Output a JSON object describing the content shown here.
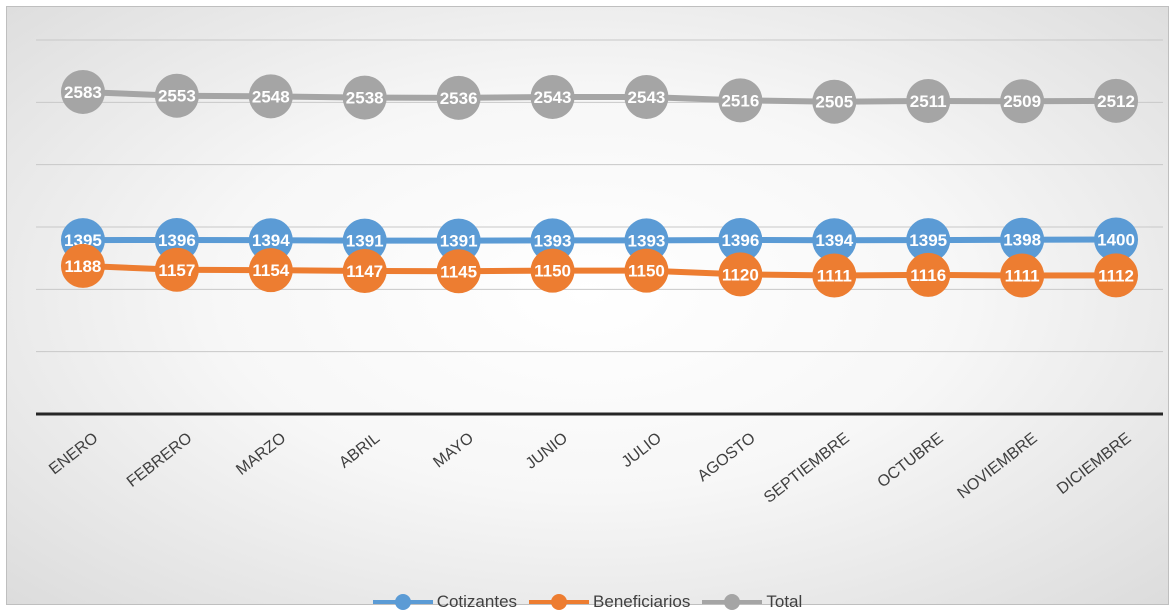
{
  "chart_data": {
    "type": "line",
    "categories": [
      "ENERO",
      "FEBRERO",
      "MARZO",
      "ABRIL",
      "MAYO",
      "JUNIO",
      "JULIO",
      "AGOSTO",
      "SEPTIEMBRE",
      "OCTUBRE",
      "NOVIEMBRE",
      "DICIEMBRE"
    ],
    "series": [
      {
        "name": "Cotizantes",
        "color": "#5b9bd5",
        "values": [
          1395,
          1396,
          1394,
          1391,
          1391,
          1393,
          1393,
          1396,
          1394,
          1395,
          1398,
          1400
        ]
      },
      {
        "name": "Beneficiarios",
        "color": "#ed7d31",
        "values": [
          1188,
          1157,
          1154,
          1147,
          1145,
          1150,
          1150,
          1120,
          1111,
          1116,
          1111,
          1112
        ]
      },
      {
        "name": "Total",
        "color": "#a5a5a5",
        "values": [
          2583,
          2553,
          2548,
          2538,
          2536,
          2543,
          2543,
          2516,
          2505,
          2511,
          2509,
          2512
        ]
      }
    ],
    "ylim": [
      0,
      3000
    ],
    "grid": true,
    "legend_position": "bottom",
    "data_labels": true
  }
}
